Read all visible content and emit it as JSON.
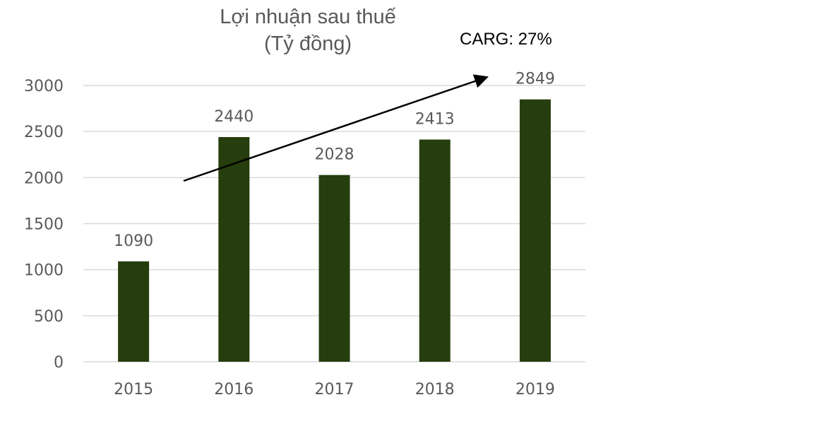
{
  "chart_data": {
    "type": "bar",
    "title": "Lợi nhuận sau thuế",
    "subtitle": "(Tỷ đồng)",
    "annotation": "CARG: 27%",
    "categories": [
      "2015",
      "2016",
      "2017",
      "2018",
      "2019"
    ],
    "values": [
      1090,
      2440,
      2028,
      2413,
      2849
    ],
    "data_labels": [
      "1090",
      "2440",
      "2028",
      "2413",
      "2849"
    ],
    "ylim": [
      0,
      3000
    ],
    "yticks": [
      0,
      500,
      1000,
      1500,
      2000,
      2500,
      3000
    ],
    "ytick_labels": [
      "0",
      "500",
      "1000",
      "1500",
      "2000",
      "2500",
      "3000"
    ],
    "grid": true,
    "legend": "none",
    "colors": {
      "bar": "#263d0d",
      "grid": "#d9d9d9",
      "text": "#595959",
      "arrow": "#000000"
    }
  }
}
